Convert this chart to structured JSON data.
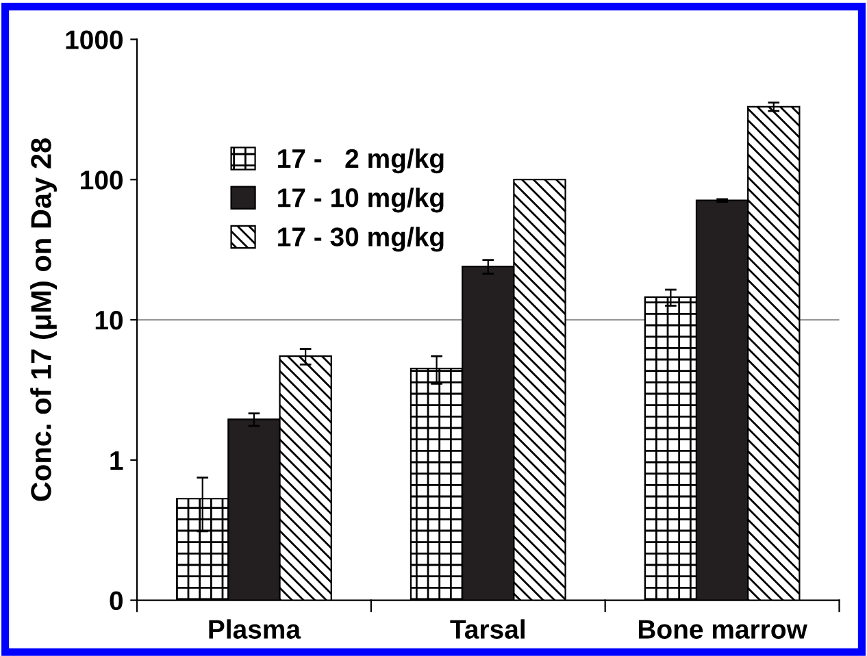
{
  "chart_data": {
    "type": "bar",
    "ylabel": "Conc. of 17 (μM) on Day 28",
    "categories": [
      "Plasma",
      "Tarsal",
      "Bone marrow"
    ],
    "series": [
      {
        "name": "17 -   2 mg/kg",
        "color": "#000000",
        "values": [
          0.53,
          4.5,
          14.5
        ],
        "errors": [
          0.22,
          1.0,
          1.9
        ]
      },
      {
        "name": "17 - 10 mg/kg",
        "color": "#231f20",
        "values": [
          1.95,
          24,
          71
        ],
        "errors": [
          0.2,
          2.7,
          1.5
        ]
      },
      {
        "name": "17 - 30 mg/kg",
        "color": "#000000",
        "values": [
          5.5,
          100,
          331
        ],
        "errors": [
          0.7,
          null,
          23
        ]
      }
    ],
    "log": "y",
    "ylim": [
      0.1,
      1000
    ],
    "yticks": [
      {
        "value": 0.1,
        "label": "0"
      },
      1,
      10,
      100,
      1000
    ],
    "ref_lines": [
      {
        "axis": "y",
        "value": 10,
        "color": "#999999"
      }
    ],
    "grid": false,
    "legend": "top left"
  }
}
